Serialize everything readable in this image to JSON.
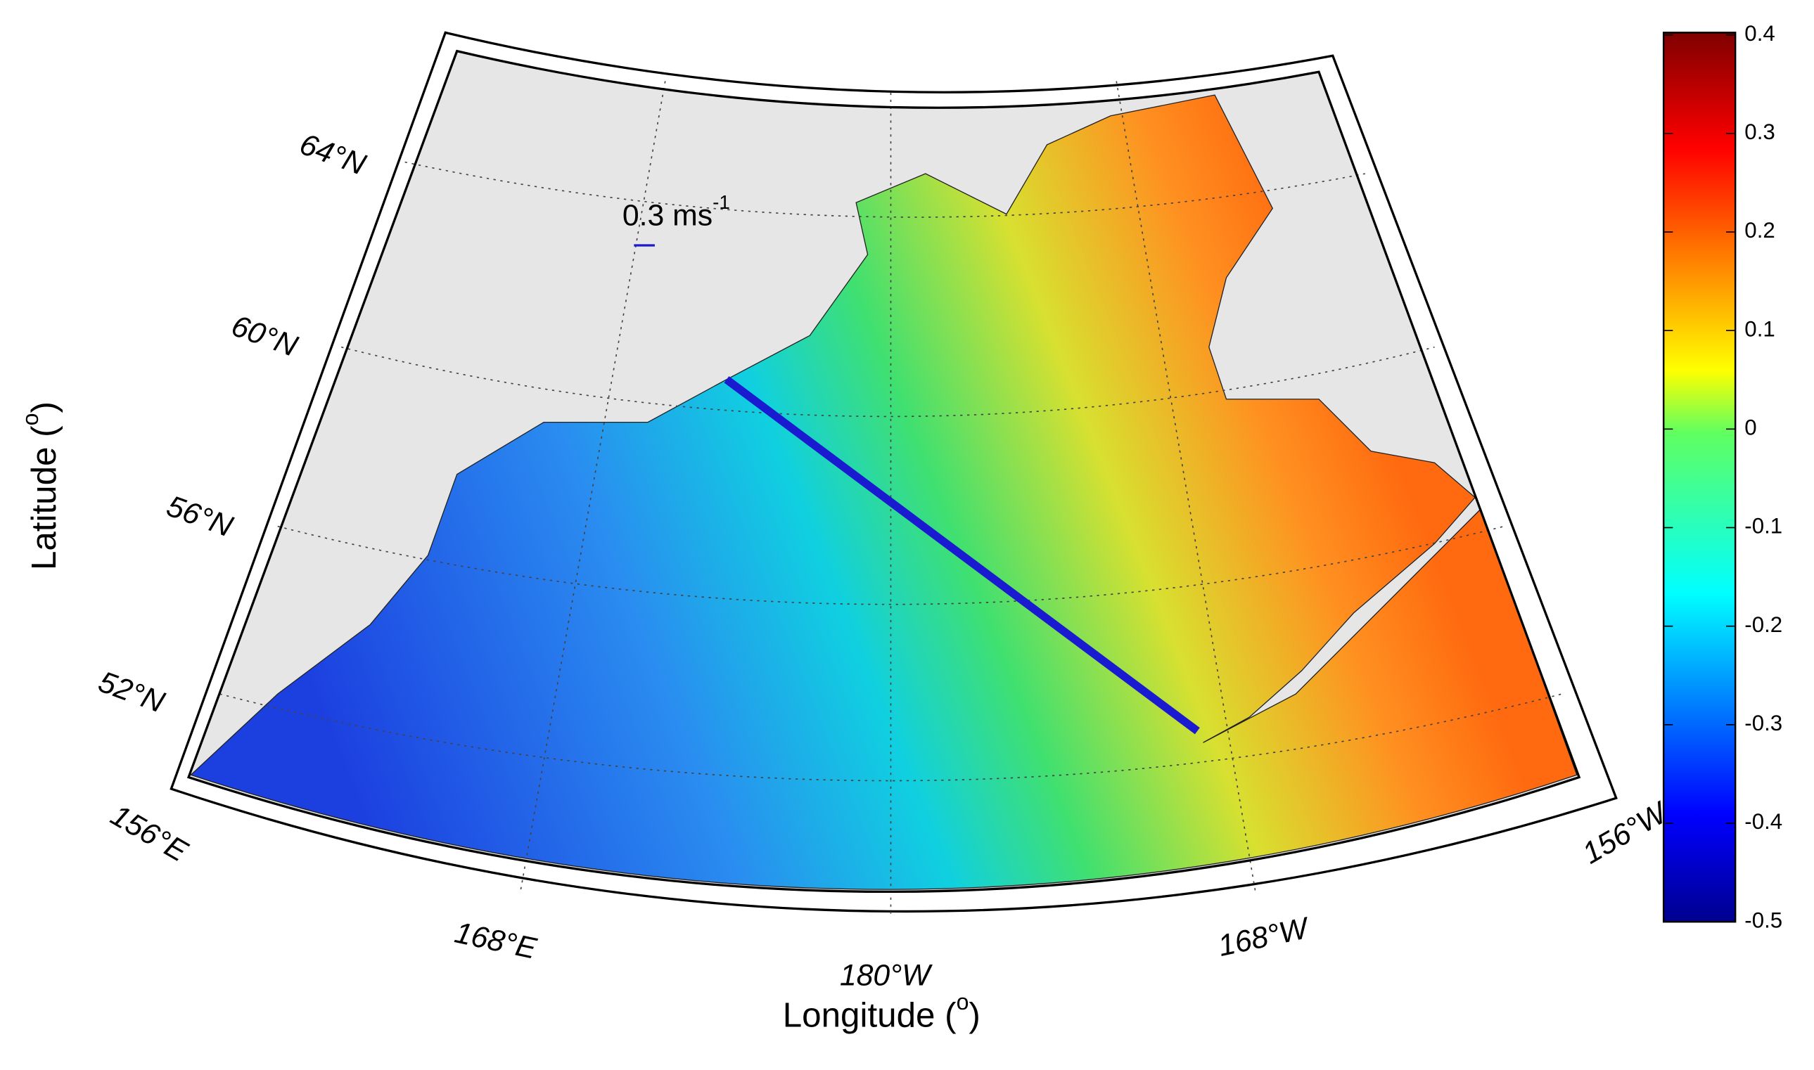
{
  "map": {
    "lat_labels": [
      "64°N",
      "60°N",
      "56°N",
      "52°N"
    ],
    "lon_labels": [
      "156°E",
      "168°E",
      "180°W",
      "168°W",
      "156°W"
    ],
    "xlabel": {
      "text": "Longitude (",
      "sup": "o",
      "end": ")"
    },
    "ylabel": {
      "text": "Latitude (",
      "sup": "o",
      "end": ")"
    },
    "scale_annotation": {
      "text": "0.3 ms",
      "sup": "-1"
    },
    "colorbar": {
      "lim": [
        -0.5,
        0.4
      ],
      "ticks": [
        0.4,
        0.3,
        0.2,
        0.1,
        0,
        -0.1,
        -0.2,
        -0.3,
        -0.4,
        -0.5
      ]
    }
  }
}
